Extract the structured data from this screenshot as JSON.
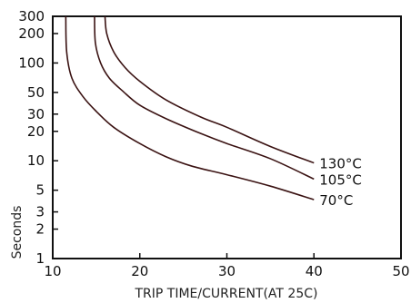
{
  "chart_data": {
    "type": "line",
    "xlabel": "TRIP TIME/CURRENT(AT 25C)",
    "ylabel": "Seconds",
    "xlim": [
      10,
      50
    ],
    "ylim": [
      1,
      300
    ],
    "yscale": "log",
    "grid": false,
    "x_ticks": [
      "10",
      "20",
      "30",
      "40",
      "50"
    ],
    "y_ticks": [
      "1",
      "2",
      "3",
      "5",
      "10",
      "20",
      "30",
      "50",
      "100",
      "200",
      "300"
    ],
    "y_tick_values": [
      1,
      2,
      3,
      5,
      10,
      20,
      30,
      50,
      100,
      200,
      300
    ],
    "x_tick_values": [
      10,
      20,
      30,
      40,
      50
    ],
    "series": [
      {
        "name": "70°C",
        "color": "#3a1212",
        "points": [
          [
            11.5,
            300
          ],
          [
            11.6,
            130
          ],
          [
            12.2,
            70
          ],
          [
            13.5,
            45
          ],
          [
            15.0,
            32
          ],
          [
            17.0,
            22
          ],
          [
            20.0,
            15
          ],
          [
            23.0,
            11
          ],
          [
            26.0,
            8.8
          ],
          [
            30.0,
            7.2
          ],
          [
            35.0,
            5.5
          ],
          [
            40.0,
            4.0
          ]
        ]
      },
      {
        "name": "105°C",
        "color": "#3a1212",
        "points": [
          [
            14.8,
            300
          ],
          [
            14.9,
            160
          ],
          [
            15.5,
            100
          ],
          [
            16.5,
            70
          ],
          [
            18.0,
            52
          ],
          [
            20.0,
            37
          ],
          [
            23.0,
            27
          ],
          [
            27.0,
            19
          ],
          [
            30.0,
            15
          ],
          [
            35.0,
            10.5
          ],
          [
            40.0,
            6.5
          ]
        ]
      },
      {
        "name": "130°C",
        "color": "#3a1212",
        "points": [
          [
            16.0,
            300
          ],
          [
            16.2,
            200
          ],
          [
            17.0,
            130
          ],
          [
            18.3,
            90
          ],
          [
            20.0,
            65
          ],
          [
            23.0,
            42
          ],
          [
            27.0,
            28
          ],
          [
            30.0,
            22
          ],
          [
            35.0,
            14
          ],
          [
            40.0,
            9.5
          ]
        ]
      }
    ]
  }
}
